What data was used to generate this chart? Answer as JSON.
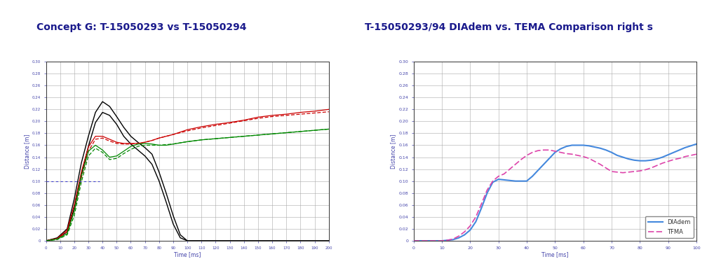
{
  "title1": "Concept G: T-15050293 vs T-15050294",
  "title2": "T-15050293/94 DIAdem vs. TEMA Comparison right s",
  "title_color": "#1a1a8c",
  "title_fontsize": 10,
  "bg_color": "#ffffff",
  "plot1": {
    "xlabel": "Time [ms]",
    "ylabel": "Distance [m]",
    "xlim": [
      0,
      200
    ],
    "ylim": [
      0,
      0.3
    ],
    "xtick_values": [
      0,
      10,
      20,
      30,
      40,
      50,
      60,
      70,
      80,
      90,
      100,
      110,
      120,
      130,
      140,
      150,
      160,
      170,
      180,
      190,
      200
    ],
    "xtick_labels": [
      "0",
      "10",
      "20",
      "30",
      "40",
      "50",
      "60",
      "70",
      "80",
      "90",
      "100",
      "110",
      "120",
      "130",
      "140",
      "150",
      "160",
      "170",
      "180",
      "190",
      "200"
    ],
    "ytick_values": [
      0,
      0.02,
      0.04,
      0.06,
      0.08,
      0.1,
      0.12,
      0.14,
      0.16,
      0.18,
      0.2,
      0.22,
      0.24,
      0.26,
      0.28,
      0.3
    ],
    "ytick_labels": [
      "0",
      "0.02",
      "0.04",
      "0.06",
      "0.08",
      "0.10",
      "0.12",
      "0.14",
      "0.16",
      "0.18",
      "0.20",
      "0.22",
      "0.24",
      "0.26",
      "0.28",
      "0.30"
    ],
    "axis_color": "#4444aa",
    "tick_color": "#4444aa",
    "label_color": "#4444aa",
    "grid_color": "#aaaaaa",
    "plot_bg": "#ffffff",
    "black_line1_x": [
      0,
      8,
      15,
      20,
      25,
      30,
      35,
      40,
      45,
      50,
      55,
      60,
      65,
      70,
      75,
      80,
      85,
      90,
      95,
      100,
      105,
      110,
      115,
      120,
      125,
      130,
      135,
      140,
      145,
      150,
      155,
      160,
      165,
      170,
      175,
      180,
      185,
      190,
      195,
      200
    ],
    "black_line1_y": [
      0,
      0.005,
      0.02,
      0.07,
      0.13,
      0.175,
      0.215,
      0.233,
      0.225,
      0.208,
      0.19,
      0.175,
      0.165,
      0.156,
      0.145,
      0.115,
      0.08,
      0.042,
      0.01,
      0.0,
      0.0,
      0.0,
      0.0,
      0.0,
      0.0,
      0.0,
      0.0,
      0.0,
      0.0,
      0.0,
      0.0,
      0.0,
      0.0,
      0.0,
      0.0,
      0.0,
      0.0,
      0.0,
      0.0,
      0.0
    ],
    "black_line2_x": [
      0,
      8,
      15,
      20,
      25,
      30,
      35,
      40,
      45,
      50,
      55,
      60,
      65,
      70,
      75,
      80,
      85,
      90,
      95,
      100,
      105,
      110,
      115,
      120,
      125,
      130,
      135,
      140,
      145,
      150,
      155,
      160,
      165,
      170,
      175,
      180,
      185,
      190,
      195,
      200
    ],
    "black_line2_y": [
      0,
      0.004,
      0.015,
      0.055,
      0.11,
      0.158,
      0.198,
      0.215,
      0.21,
      0.195,
      0.175,
      0.162,
      0.152,
      0.142,
      0.128,
      0.1,
      0.065,
      0.028,
      0.005,
      0.0,
      0.0,
      0.0,
      0.0,
      0.0,
      0.0,
      0.0,
      0.0,
      0.0,
      0.0,
      0.0,
      0.0,
      0.0,
      0.0,
      0.0,
      0.0,
      0.0,
      0.0,
      0.0,
      0.0,
      0.0
    ],
    "red_solid_x": [
      0,
      8,
      15,
      20,
      25,
      30,
      35,
      40,
      45,
      50,
      55,
      60,
      65,
      70,
      75,
      80,
      85,
      90,
      95,
      100,
      110,
      120,
      130,
      140,
      150,
      160,
      170,
      180,
      190,
      200
    ],
    "red_solid_y": [
      0,
      0.004,
      0.018,
      0.06,
      0.115,
      0.157,
      0.175,
      0.175,
      0.17,
      0.165,
      0.163,
      0.163,
      0.163,
      0.165,
      0.168,
      0.172,
      0.175,
      0.178,
      0.182,
      0.186,
      0.191,
      0.195,
      0.198,
      0.202,
      0.207,
      0.21,
      0.212,
      0.215,
      0.217,
      0.22
    ],
    "red_dashed_x": [
      0,
      8,
      15,
      20,
      25,
      30,
      35,
      40,
      45,
      50,
      55,
      60,
      65,
      70,
      75,
      80,
      85,
      90,
      95,
      100,
      110,
      120,
      130,
      140,
      150,
      160,
      170,
      180,
      190,
      200
    ],
    "red_dashed_y": [
      0,
      0.003,
      0.015,
      0.05,
      0.105,
      0.15,
      0.17,
      0.172,
      0.167,
      0.163,
      0.162,
      0.162,
      0.163,
      0.165,
      0.168,
      0.172,
      0.175,
      0.178,
      0.181,
      0.184,
      0.189,
      0.193,
      0.197,
      0.201,
      0.205,
      0.208,
      0.21,
      0.212,
      0.214,
      0.216
    ],
    "green_solid_x": [
      0,
      8,
      15,
      20,
      25,
      30,
      35,
      40,
      45,
      50,
      55,
      60,
      65,
      70,
      75,
      80,
      85,
      90,
      95,
      100,
      110,
      120,
      130,
      140,
      150,
      160,
      170,
      180,
      190,
      200
    ],
    "green_solid_y": [
      0,
      0.003,
      0.012,
      0.05,
      0.108,
      0.15,
      0.16,
      0.152,
      0.14,
      0.142,
      0.15,
      0.158,
      0.162,
      0.163,
      0.162,
      0.16,
      0.16,
      0.162,
      0.164,
      0.166,
      0.169,
      0.171,
      0.173,
      0.175,
      0.177,
      0.179,
      0.181,
      0.183,
      0.185,
      0.187
    ],
    "green_dashed_x": [
      0,
      8,
      15,
      20,
      25,
      30,
      35,
      40,
      45,
      50,
      55,
      60,
      65,
      70,
      75,
      80,
      85,
      90,
      95,
      100,
      110,
      120,
      130,
      140,
      150,
      160,
      170,
      180,
      190,
      200
    ],
    "green_dashed_y": [
      0,
      0.002,
      0.01,
      0.042,
      0.098,
      0.142,
      0.155,
      0.148,
      0.136,
      0.138,
      0.146,
      0.153,
      0.158,
      0.16,
      0.16,
      0.16,
      0.161,
      0.162,
      0.164,
      0.166,
      0.169,
      0.171,
      0.173,
      0.175,
      0.177,
      0.179,
      0.181,
      0.183,
      0.185,
      0.187
    ],
    "blue_dashed_x": [
      0,
      5,
      12,
      18,
      25,
      32,
      38
    ],
    "blue_dashed_y": [
      0.1,
      0.1,
      0.1,
      0.1,
      0.1,
      0.1,
      0.1
    ]
  },
  "plot2": {
    "xlabel": "Time [ms]",
    "ylabel": "Distance [m]",
    "xlim": [
      0,
      100
    ],
    "ylim": [
      0,
      0.3
    ],
    "xtick_values": [
      0,
      10,
      20,
      30,
      40,
      50,
      60,
      70,
      80,
      90,
      100
    ],
    "xtick_labels": [
      "0",
      "10",
      "20",
      "30",
      "40",
      "50",
      "60",
      "70",
      "80",
      "90",
      "100"
    ],
    "ytick_values": [
      0,
      0.02,
      0.04,
      0.06,
      0.08,
      0.1,
      0.12,
      0.14,
      0.16,
      0.18,
      0.2,
      0.22,
      0.24,
      0.26,
      0.28,
      0.3
    ],
    "ytick_labels": [
      "0",
      "0.02",
      "0.04",
      "0.06",
      "0.08",
      "0.10",
      "0.12",
      "0.14",
      "0.16",
      "0.18",
      "0.20",
      "0.22",
      "0.24",
      "0.26",
      "0.28",
      "0.30"
    ],
    "axis_color": "#4444aa",
    "tick_color": "#4444aa",
    "label_color": "#4444aa",
    "grid_color": "#aaaaaa",
    "plot_bg": "#ffffff",
    "diadem_x": [
      0,
      5,
      10,
      12,
      14,
      16,
      18,
      20,
      22,
      24,
      26,
      28,
      30,
      32,
      34,
      36,
      38,
      40,
      42,
      44,
      46,
      48,
      50,
      52,
      54,
      56,
      58,
      60,
      62,
      64,
      66,
      68,
      70,
      72,
      74,
      76,
      78,
      80,
      82,
      84,
      86,
      88,
      90,
      92,
      94,
      96,
      98,
      100
    ],
    "diadem_y": [
      0,
      0.0,
      0.0,
      0.001,
      0.002,
      0.005,
      0.01,
      0.018,
      0.032,
      0.055,
      0.08,
      0.098,
      0.103,
      0.102,
      0.101,
      0.1,
      0.1,
      0.1,
      0.108,
      0.118,
      0.128,
      0.138,
      0.148,
      0.154,
      0.158,
      0.16,
      0.16,
      0.16,
      0.159,
      0.157,
      0.155,
      0.152,
      0.148,
      0.143,
      0.14,
      0.137,
      0.135,
      0.134,
      0.134,
      0.135,
      0.137,
      0.14,
      0.144,
      0.148,
      0.152,
      0.156,
      0.159,
      0.162
    ],
    "tema_x": [
      0,
      5,
      10,
      12,
      14,
      16,
      18,
      20,
      22,
      24,
      26,
      28,
      30,
      32,
      34,
      36,
      38,
      40,
      42,
      44,
      46,
      48,
      50,
      52,
      54,
      56,
      58,
      60,
      62,
      64,
      66,
      68,
      70,
      72,
      74,
      76,
      78,
      80,
      82,
      84,
      86,
      88,
      90,
      92,
      94,
      96,
      98,
      100
    ],
    "tema_y": [
      0,
      0.0,
      0.0,
      0.001,
      0.003,
      0.008,
      0.015,
      0.025,
      0.04,
      0.062,
      0.085,
      0.1,
      0.108,
      0.112,
      0.12,
      0.128,
      0.136,
      0.143,
      0.148,
      0.151,
      0.152,
      0.152,
      0.15,
      0.148,
      0.146,
      0.145,
      0.143,
      0.141,
      0.138,
      0.133,
      0.128,
      0.122,
      0.116,
      0.115,
      0.114,
      0.115,
      0.116,
      0.117,
      0.119,
      0.122,
      0.126,
      0.13,
      0.133,
      0.136,
      0.138,
      0.141,
      0.143,
      0.145
    ],
    "legend_labels": [
      "DIAdem",
      "TFMA"
    ],
    "diadem_color": "#4488dd",
    "tema_color": "#dd44aa"
  }
}
